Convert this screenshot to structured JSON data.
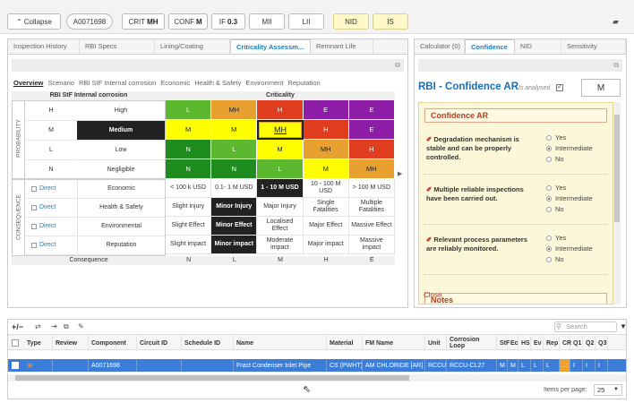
{
  "topbar": {
    "collapse": "Collapse",
    "asset": "A0071698",
    "crit_label": "CRIT",
    "crit_value": "MH",
    "conf_label": "CONF",
    "conf_value": "M",
    "if_label": "IF",
    "if_value": "0.3",
    "mii": "MII",
    "lii": "LII",
    "nid": "NID",
    "is": "IS"
  },
  "left_tabs": [
    "Inspection History",
    "RBI Specs",
    "Lining/Coating",
    "Criticality Assessm...",
    "Remnant Life"
  ],
  "sub_tabs": [
    "Overview",
    "Scenario",
    "RBI StF Internal corrosion",
    "Economic",
    "Health & Safety",
    "Environment",
    "Reputation"
  ],
  "probability": {
    "title": "RBI StF Internal corrosion",
    "axis": "PROBABILITY",
    "rows": [
      [
        "H",
        "High"
      ],
      [
        "M",
        "Medium"
      ],
      [
        "L",
        "Low"
      ],
      [
        "N",
        "Negligible"
      ]
    ]
  },
  "criticality": {
    "title": "Criticality",
    "matrix": [
      [
        "L",
        "MH",
        "H",
        "E",
        "E"
      ],
      [
        "M",
        "M",
        "MH",
        "H",
        "E"
      ],
      [
        "N",
        "L",
        "M",
        "MH",
        "H"
      ],
      [
        "N",
        "N",
        "L",
        "M",
        "MH"
      ]
    ],
    "colors": [
      [
        "#5cb82e",
        "#e8a02e",
        "#e03c1e",
        "#8e1ea8",
        "#8e1ea8"
      ],
      [
        "#ffff00",
        "#ffff00",
        "#ffff00",
        "#e03c1e",
        "#8e1ea8"
      ],
      [
        "#1e8c1e",
        "#5cb82e",
        "#ffff00",
        "#e8a02e",
        "#e03c1e"
      ],
      [
        "#1e8c1e",
        "#1e8c1e",
        "#5cb82e",
        "#ffff00",
        "#e8a02e"
      ]
    ]
  },
  "consequence": {
    "axis": "CONSEQUENCE",
    "rows": [
      {
        "link": "Direct",
        "name": "Economic",
        "cells": [
          "< 100 k USD",
          "0.1- 1 M USD",
          "1 - 10 M USD",
          "10 - 100 M USD",
          "> 100 M USD"
        ]
      },
      {
        "link": "Direct",
        "name": "Health & Safety",
        "cells": [
          "Slight injury",
          "Minor Injury",
          "Major Injury",
          "Single Fatalities",
          "Multiple Fatalities"
        ]
      },
      {
        "link": "Direct",
        "name": "Environmental",
        "cells": [
          "Slight Effect",
          "Minor Effect",
          "Localised Effect",
          "Major Effect",
          "Massive Effect"
        ]
      },
      {
        "link": "Direct",
        "name": "Reputation",
        "cells": [
          "Slight impact",
          "Minor impact",
          "Moderate impact",
          "Major impact",
          "Massive impact"
        ]
      }
    ],
    "footer": "Consequence",
    "levels": [
      "N",
      "L",
      "M",
      "H",
      "E"
    ]
  },
  "right_tabs": [
    "Calculator (0)",
    "Confidence",
    "NID",
    "Sensitivity"
  ],
  "confidence": {
    "title": "RBI - Confidence AR",
    "analysed_label": "Is analysed",
    "value": "M",
    "section": "Confidence AR",
    "questions": [
      {
        "text": "Degradation mechanism is stable and can be properly controlled."
      },
      {
        "text": "Multiple reliable inspections have been carried out."
      },
      {
        "text": "Relevant process parameters are reliably monitored."
      }
    ],
    "options": [
      "Yes",
      "Intermediate",
      "No"
    ],
    "notes": "Notes",
    "close": "Close"
  },
  "grid": {
    "search_placeholder": "Search",
    "headers": [
      "Type",
      "Review",
      "Component",
      "Circuit ID",
      "Schedule ID",
      "Name",
      "Material",
      "FM Name",
      "Unit",
      "Corrosion Loop",
      "StF",
      "Ec",
      "HS",
      "Ev",
      "Rep",
      "CR",
      "Q1",
      "Q2",
      "Q3"
    ],
    "row": [
      "",
      "",
      "A0071698",
      "",
      "",
      "Fract Condenser Inlet Pipe",
      "CS (PWHT)",
      "AM CHLORIDE [AR]",
      "RCCU",
      "RCCU-CL27",
      "M",
      "M",
      "L",
      "L",
      "L",
      "...",
      "I",
      "I",
      "I"
    ],
    "items_per_page_label": "Items per page:",
    "items_per_page": "25"
  }
}
